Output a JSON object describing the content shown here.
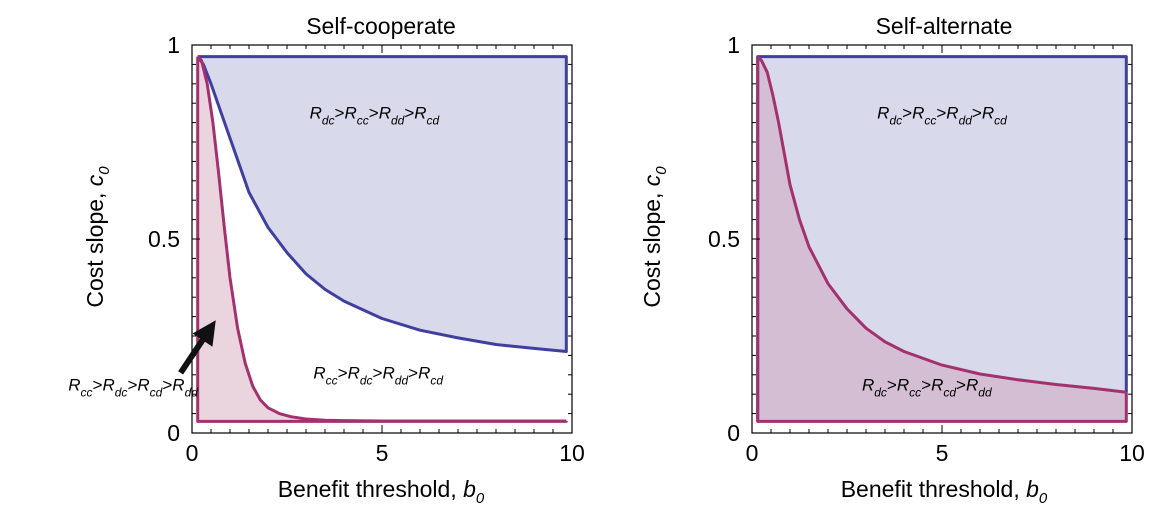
{
  "chart_data": [
    {
      "type": "area",
      "title": "Self-cooperate",
      "xlabel": "Benefit threshold, ",
      "xlabel_symbol": "b",
      "xlabel_sub": "0",
      "ylabel": "Cost slope, ",
      "ylabel_symbol": "c",
      "ylabel_sub": "0",
      "xlim": [
        0,
        10
      ],
      "ylim": [
        0,
        1
      ],
      "xticks": [
        0,
        5,
        10
      ],
      "xtick_labels": [
        "0",
        "5",
        "10"
      ],
      "yticks": [
        0,
        0.5,
        1
      ],
      "ytick_labels": [
        "0",
        "0.5",
        "1"
      ],
      "grid": false,
      "series": [
        {
          "fill": "#d9d9ec",
          "stroke": "#3f3f9f",
          "x": [
            0.15,
            0.3,
            0.5,
            0.75,
            1.0,
            1.25,
            1.5,
            2.0,
            2.5,
            3.0,
            3.5,
            4.0,
            5.0,
            6.0,
            7.0,
            8.0,
            9.0,
            9.85
          ],
          "y": [
            0.97,
            0.95,
            0.9,
            0.83,
            0.76,
            0.69,
            0.62,
            0.53,
            0.465,
            0.41,
            0.37,
            0.34,
            0.295,
            0.265,
            0.245,
            0.228,
            0.218,
            0.21
          ]
        },
        {
          "fill": "#ead5df",
          "stroke": "#a3306f",
          "x": [
            0.15,
            0.25,
            0.4,
            0.55,
            0.7,
            0.85,
            1.0,
            1.2,
            1.4,
            1.6,
            1.8,
            2.0,
            2.3,
            2.6,
            3.0,
            3.5,
            4.0,
            5.0,
            7.0,
            9.85
          ],
          "y": [
            0.97,
            0.96,
            0.9,
            0.8,
            0.67,
            0.53,
            0.4,
            0.27,
            0.18,
            0.12,
            0.085,
            0.065,
            0.05,
            0.042,
            0.036,
            0.033,
            0.032,
            0.031,
            0.031,
            0.031
          ]
        }
      ],
      "annotations": [
        {
          "parts": [
            [
              "R",
              "dc"
            ],
            [
              "R",
              "cc"
            ],
            [
              "R",
              "dd"
            ],
            [
              "R",
              "cd"
            ]
          ],
          "x": 4.8,
          "y": 0.81
        },
        {
          "parts": [
            [
              "R",
              "cc"
            ],
            [
              "R",
              "dc"
            ],
            [
              "R",
              "dd"
            ],
            [
              "R",
              "cd"
            ]
          ],
          "x": 4.9,
          "y": 0.14
        },
        {
          "parts": [
            [
              "R",
              "cc"
            ],
            [
              "R",
              "dc"
            ],
            [
              "R",
              "cd"
            ],
            [
              "R",
              "dd"
            ]
          ],
          "x": -1.55,
          "y": 0.11
        }
      ]
    },
    {
      "type": "area",
      "title": "Self-alternate",
      "xlabel": "Benefit threshold, ",
      "xlabel_symbol": "b",
      "xlabel_sub": "0",
      "ylabel": "Cost slope, ",
      "ylabel_symbol": "c",
      "ylabel_sub": "0",
      "xlim": [
        0,
        10
      ],
      "ylim": [
        0,
        1
      ],
      "xticks": [
        0,
        5,
        10
      ],
      "xtick_labels": [
        "0",
        "5",
        "10"
      ],
      "yticks": [
        0,
        0.5,
        1
      ],
      "ytick_labels": [
        "0",
        "0.5",
        "1"
      ],
      "grid": false,
      "series": [
        {
          "fill": "#d9d9ec",
          "stroke": "#3f3f9f",
          "x": [
            0.15,
            9.85
          ],
          "y": [
            0.97,
            0.97
          ]
        },
        {
          "fill": "#d2b9d0",
          "stroke": "#a3306f",
          "x": [
            0.15,
            0.25,
            0.4,
            0.55,
            0.7,
            0.85,
            1.0,
            1.25,
            1.5,
            2.0,
            2.5,
            3.0,
            3.5,
            4.0,
            5.0,
            6.0,
            7.0,
            8.0,
            9.0,
            9.85
          ],
          "y": [
            0.97,
            0.96,
            0.93,
            0.87,
            0.8,
            0.72,
            0.64,
            0.55,
            0.48,
            0.385,
            0.32,
            0.27,
            0.235,
            0.21,
            0.175,
            0.152,
            0.137,
            0.125,
            0.115,
            0.105
          ]
        }
      ],
      "annotations": [
        {
          "parts": [
            [
              "R",
              "dc"
            ],
            [
              "R",
              "cc"
            ],
            [
              "R",
              "dd"
            ],
            [
              "R",
              "cd"
            ]
          ],
          "x": 5.0,
          "y": 0.81
        },
        {
          "parts": [
            [
              "R",
              "dc"
            ],
            [
              "R",
              "cc"
            ],
            [
              "R",
              "cd"
            ],
            [
              "R",
              "dd"
            ]
          ],
          "x": 4.6,
          "y": 0.11
        }
      ]
    }
  ]
}
